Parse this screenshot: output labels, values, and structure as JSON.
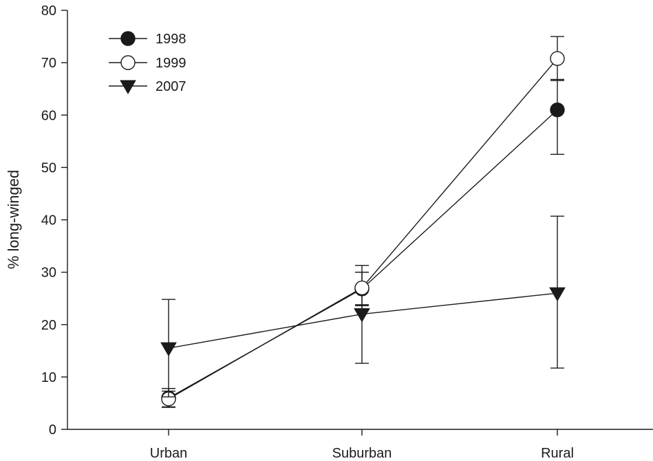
{
  "chart_data": {
    "type": "line",
    "title": "",
    "xlabel": "",
    "ylabel": "% long-winged",
    "categories": [
      "Urban",
      "Suburban",
      "Rural"
    ],
    "ylim": [
      0,
      80
    ],
    "yticks": [
      0,
      10,
      20,
      30,
      40,
      50,
      60,
      70,
      80
    ],
    "grid": false,
    "legend_position": "top-left",
    "series": [
      {
        "name": "1998",
        "marker": "filled-circle",
        "values": [
          6,
          26.8,
          61
        ],
        "error_upper": [
          1.8,
          3.2,
          5.8
        ],
        "error_lower": [
          1.8,
          3.2,
          8.5
        ]
      },
      {
        "name": "1999",
        "marker": "open-circle",
        "values": [
          5.8,
          27,
          70.8
        ],
        "error_upper": [
          1.5,
          4.3,
          4.2
        ],
        "error_lower": [
          1.5,
          4.3,
          4.2
        ]
      },
      {
        "name": "2007",
        "marker": "filled-triangle-down",
        "values": [
          15.5,
          22,
          26
        ],
        "error_upper": [
          9.3,
          1.8,
          14.7
        ],
        "error_lower": [
          9.3,
          9.4,
          14.3
        ]
      }
    ]
  }
}
